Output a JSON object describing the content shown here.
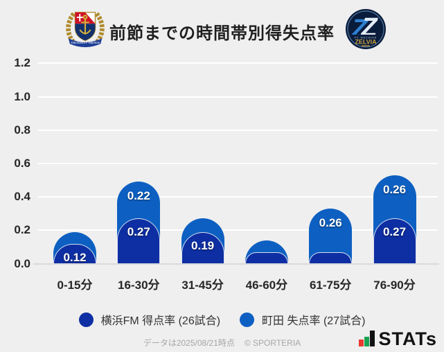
{
  "header": {
    "title": "前節までの時間帯別得失点率",
    "home_crest_ribbon": "Yokohama F·Marinos",
    "away_crest": {
      "club_small": "FC MACHIDA",
      "club_name": "ZELVIA"
    }
  },
  "chart_data": {
    "type": "bar",
    "stacked": true,
    "title": "前節までの時間帯別得失点率",
    "categories": [
      "0-15分",
      "16-30分",
      "31-45分",
      "46-60分",
      "61-75分",
      "76-90分"
    ],
    "series": [
      {
        "name": "横浜FM 得点率 (26試合)",
        "color": "#0e2fa3",
        "values": [
          0.12,
          0.27,
          0.19,
          0.07,
          0.07,
          0.27
        ],
        "labels": [
          "0.12",
          "0.27",
          "0.19",
          "",
          "",
          "0.27"
        ]
      },
      {
        "name": "町田 失点率 (27試合)",
        "color": "#0d60c2",
        "values": [
          0.07,
          0.22,
          0.08,
          0.07,
          0.26,
          0.26
        ],
        "labels": [
          "",
          "0.22",
          "",
          "",
          "0.26",
          "0.26"
        ]
      }
    ],
    "ylim": [
      0,
      1.2
    ],
    "yticks": [
      "0.0",
      "0.2",
      "0.4",
      "0.6",
      "0.8",
      "1.0",
      "1.2"
    ],
    "grid": true,
    "legend_position": "bottom"
  },
  "legend": {
    "items": [
      {
        "label": "横浜FM 得点率 (26試合)",
        "color": "#0e2fa3"
      },
      {
        "label": "町田 失点率 (27試合)",
        "color": "#0d60c2"
      }
    ]
  },
  "footer": {
    "data_note": "データは2025/08/21時点",
    "copyright": "© SPORTERIA",
    "brand": "STATs",
    "brand_colors": {
      "red": "#e8382f",
      "green": "#17a253",
      "black": "#111111"
    }
  },
  "colors": {
    "background": "#efefef",
    "gridline": "#ffffff",
    "axis_line": "#d9d9d9",
    "text_dark": "#262626",
    "bar_dark": "#0e2fa3",
    "bar_light": "#0d60c2"
  }
}
